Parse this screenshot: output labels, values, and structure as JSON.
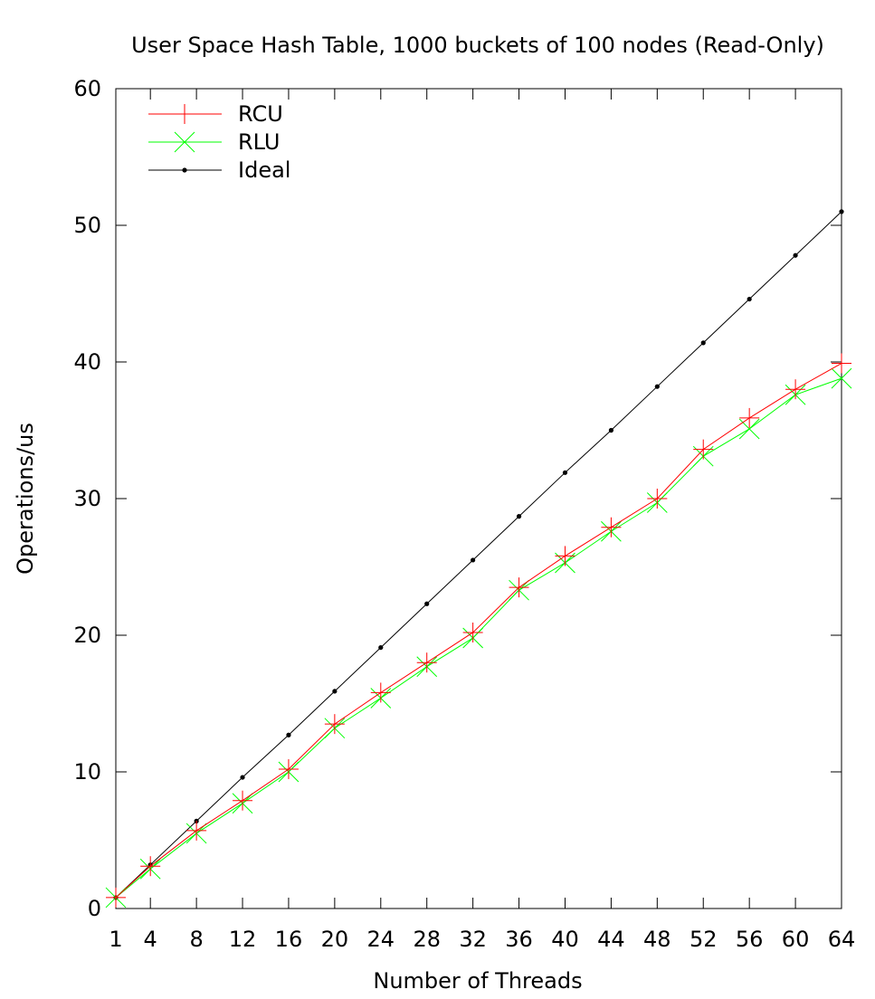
{
  "chart_data": {
    "type": "line",
    "title": "User Space Hash Table, 1000 buckets of 100 nodes (Read-Only)",
    "xlabel": "Number of Threads",
    "ylabel": "Operations/us",
    "x": [
      1,
      4,
      8,
      12,
      16,
      20,
      24,
      28,
      32,
      36,
      40,
      44,
      48,
      52,
      56,
      60,
      64
    ],
    "x_ticks": [
      "1",
      "4",
      "8",
      "12",
      "16",
      "20",
      "24",
      "28",
      "32",
      "36",
      "40",
      "44",
      "48",
      "52",
      "56",
      "60",
      "64"
    ],
    "ylim": [
      0,
      60
    ],
    "y_ticks": [
      "0",
      "10",
      "20",
      "30",
      "40",
      "50",
      "60"
    ],
    "grid": false,
    "legend_position": "top-left",
    "series": [
      {
        "name": "RCU",
        "color": "#ff0000",
        "marker": "plus",
        "values": [
          0.8,
          3.1,
          5.7,
          7.9,
          10.2,
          13.5,
          15.8,
          18.0,
          20.2,
          23.5,
          25.8,
          27.9,
          30.0,
          33.6,
          35.9,
          38.0,
          39.9
        ]
      },
      {
        "name": "RLU",
        "color": "#00ff00",
        "marker": "cross",
        "values": [
          0.8,
          2.9,
          5.5,
          7.7,
          10.0,
          13.2,
          15.4,
          17.7,
          19.8,
          23.3,
          25.3,
          27.6,
          29.7,
          33.1,
          35.1,
          37.6,
          38.8
        ]
      },
      {
        "name": "Ideal",
        "color": "#000000",
        "marker": "dot",
        "values": [
          0.8,
          3.2,
          6.4,
          9.6,
          12.7,
          15.9,
          19.1,
          22.3,
          25.5,
          28.7,
          31.9,
          35.0,
          38.2,
          41.4,
          44.6,
          47.8,
          51.0
        ]
      }
    ]
  }
}
